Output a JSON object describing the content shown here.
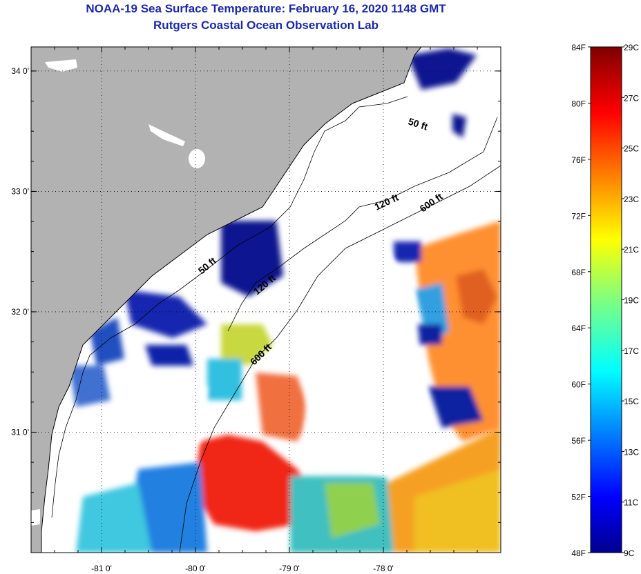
{
  "header": {
    "title": "NOAA-19 Sea Surface Temperature:  February 16, 2020 1148 GMT",
    "subtitle": "Rutgers Coastal Ocean Observation Lab"
  },
  "map": {
    "lon_ticks": [
      {
        "value": -81,
        "label": "-81 0'"
      },
      {
        "value": -80,
        "label": "-80 0'"
      },
      {
        "value": -79,
        "label": "-79 0'"
      },
      {
        "value": -78,
        "label": "-78 0'"
      }
    ],
    "lat_ticks": [
      {
        "value": 34,
        "label": "34 0'"
      },
      {
        "value": 33,
        "label": "33 0'"
      },
      {
        "value": 32,
        "label": "32 0'"
      },
      {
        "value": 31,
        "label": "31 0'"
      }
    ],
    "lon_range": [
      -81.75,
      -76.75
    ],
    "lat_range": [
      30.0,
      34.2
    ],
    "contour_labels": [
      "50 ft",
      "120 ft",
      "600 ft",
      "50 ft",
      "120 ft",
      "600 ft"
    ]
  },
  "colorbar": {
    "fahrenheit_labels": [
      "84F",
      "80F",
      "76F",
      "72F",
      "68F",
      "64F",
      "60F",
      "56F",
      "52F",
      "48F"
    ],
    "celsius_labels": [
      "29C",
      "27C",
      "25C",
      "23C",
      "21C",
      "19C",
      "17C",
      "15C",
      "13C",
      "11C",
      "9C"
    ],
    "range_f": [
      48,
      84
    ],
    "range_c": [
      9,
      29
    ]
  },
  "colors": {
    "title": "#1a28a8",
    "land": "#b2b2b2",
    "cloud": "#ffffff",
    "cold": "#0a1490",
    "warm": "#e82010"
  }
}
